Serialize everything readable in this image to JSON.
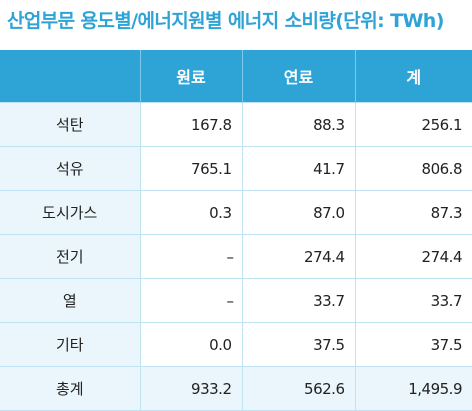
{
  "title": "산업부문 용도별/에너지원별 에너지 소비량(단위: TWh)",
  "table": {
    "headers": [
      "",
      "원료",
      "연료",
      "계"
    ],
    "rows": [
      {
        "label": "석탄",
        "values": [
          "167.8",
          "88.3",
          "256.1"
        ]
      },
      {
        "label": "석유",
        "values": [
          "765.1",
          "41.7",
          "806.8"
        ]
      },
      {
        "label": "도시가스",
        "values": [
          "0.3",
          "87.0",
          "87.3"
        ]
      },
      {
        "label": "전기",
        "values": [
          "–",
          "274.4",
          "274.4"
        ]
      },
      {
        "label": "열",
        "values": [
          "–",
          "33.7",
          "33.7"
        ]
      },
      {
        "label": "기타",
        "values": [
          "0.0",
          "37.5",
          "37.5"
        ]
      },
      {
        "label": "총계",
        "values": [
          "933.2",
          "562.6",
          "1,495.9"
        ]
      }
    ]
  },
  "colors": {
    "accent": "#2ea4d6",
    "label_bg": "#eaf6fb"
  }
}
